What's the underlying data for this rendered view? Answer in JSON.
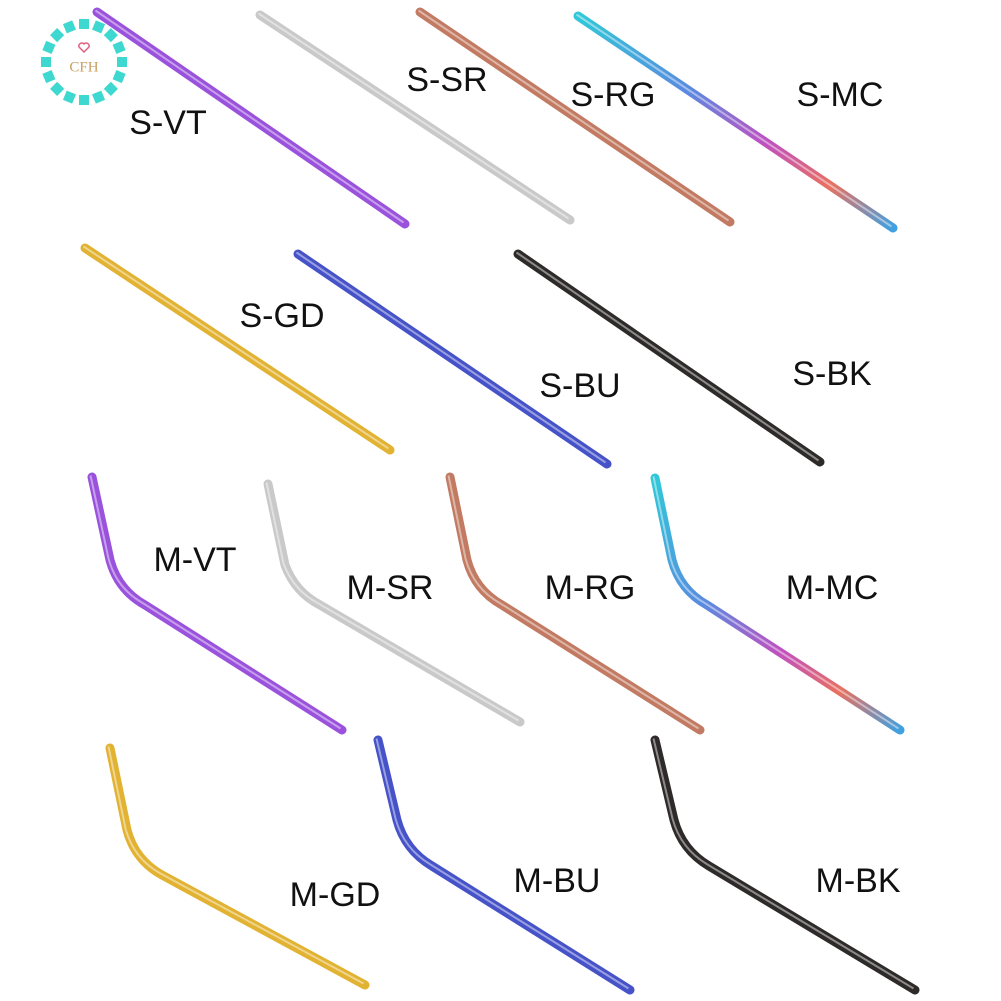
{
  "logo": {
    "text": "CFH"
  },
  "items": [
    {
      "label": "S-VT"
    },
    {
      "label": "S-SR"
    },
    {
      "label": "S-RG"
    },
    {
      "label": "S-MC"
    },
    {
      "label": "S-GD"
    },
    {
      "label": "S-BU"
    },
    {
      "label": "S-BK"
    },
    {
      "label": "M-VT"
    },
    {
      "label": "M-SR"
    },
    {
      "label": "M-RG"
    },
    {
      "label": "M-MC"
    },
    {
      "label": "M-GD"
    },
    {
      "label": "M-BU"
    },
    {
      "label": "M-BK"
    }
  ]
}
